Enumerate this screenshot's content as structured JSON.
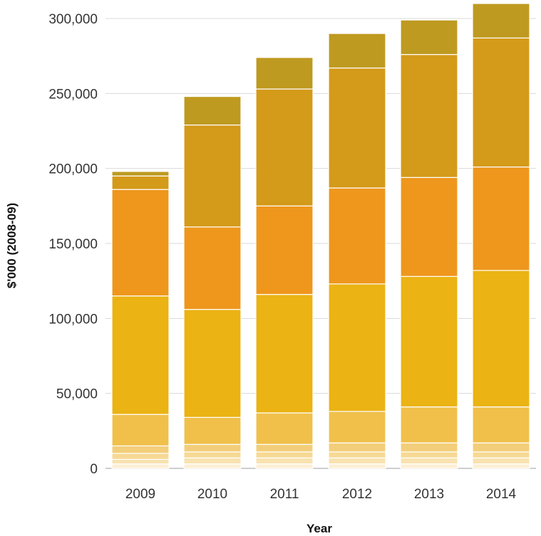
{
  "chart_data": {
    "type": "bar",
    "stacked": true,
    "title": "",
    "xlabel": "Year",
    "ylabel": "$'000 (2008-09)",
    "categories": [
      "2009",
      "2010",
      "2011",
      "2012",
      "2013",
      "2014"
    ],
    "ylim": [
      0,
      300000
    ],
    "yticks": [
      0,
      50000,
      100000,
      150000,
      200000,
      250000,
      300000
    ],
    "ytick_labels": [
      "0",
      "50,000",
      "100,000",
      "150,000",
      "200,000",
      "250,000",
      "300,000"
    ],
    "grid": true,
    "legend": "none",
    "series": [
      {
        "color": "#FCEFD3",
        "values": [
          3000,
          3000,
          3000,
          3000,
          3000,
          3000
        ]
      },
      {
        "color": "#F8E2B0",
        "values": [
          3000,
          4000,
          4000,
          4000,
          4000,
          4000
        ]
      },
      {
        "color": "#F6D994",
        "values": [
          4000,
          4000,
          4000,
          4000,
          4000,
          4000
        ]
      },
      {
        "color": "#F3CE7A",
        "values": [
          5000,
          5000,
          5000,
          6000,
          6000,
          6000
        ]
      },
      {
        "color": "#F0C04B",
        "values": [
          21000,
          18000,
          21000,
          21000,
          24000,
          24000
        ]
      },
      {
        "color": "#EBB313",
        "values": [
          79000,
          72000,
          79000,
          85000,
          87000,
          91000
        ]
      },
      {
        "color": "#EE971C",
        "values": [
          71000,
          55000,
          59000,
          64000,
          66000,
          69000
        ]
      },
      {
        "color": "#D49A19",
        "values": [
          9000,
          68000,
          78000,
          80000,
          82000,
          86000
        ]
      },
      {
        "color": "#BE9A20",
        "values": [
          3000,
          19000,
          21000,
          23000,
          23000,
          23000
        ]
      }
    ]
  }
}
